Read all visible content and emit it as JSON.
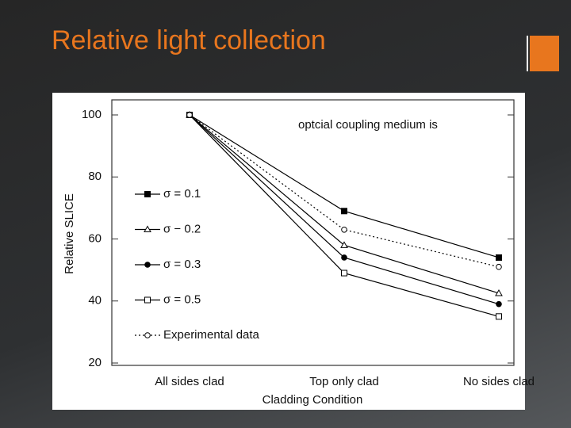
{
  "slide": {
    "title": "Relative light collection"
  },
  "chart_data": {
    "type": "line",
    "annotation": "optcial coupling medium is",
    "y_label": "Relative SLICE",
    "x_label": "Cladding Condition",
    "categories": [
      "All sides clad",
      "Top only clad",
      "No sides clad"
    ],
    "series": [
      {
        "name": "σ = 0.1",
        "color": "#000000",
        "marker": "square-filled",
        "dash": false,
        "values": [
          100,
          69,
          54
        ]
      },
      {
        "name": "σ − 0.2",
        "color": "#000000",
        "marker": "triangle-open",
        "dash": false,
        "values": [
          100,
          58,
          42.5
        ]
      },
      {
        "name": "σ = 0.3",
        "color": "#000000",
        "marker": "circle-filled",
        "dash": false,
        "values": [
          100,
          54,
          39
        ]
      },
      {
        "name": "σ = 0.5",
        "color": "#000000",
        "marker": "square-open",
        "dash": false,
        "values": [
          100,
          49,
          35
        ]
      },
      {
        "name": "Experimental data",
        "color": "#000000",
        "marker": "circle-open",
        "dash": true,
        "values": [
          100,
          63,
          51
        ]
      }
    ],
    "ylim": [
      20,
      100
    ],
    "yticks": [
      20,
      40,
      60,
      80,
      100
    ]
  }
}
